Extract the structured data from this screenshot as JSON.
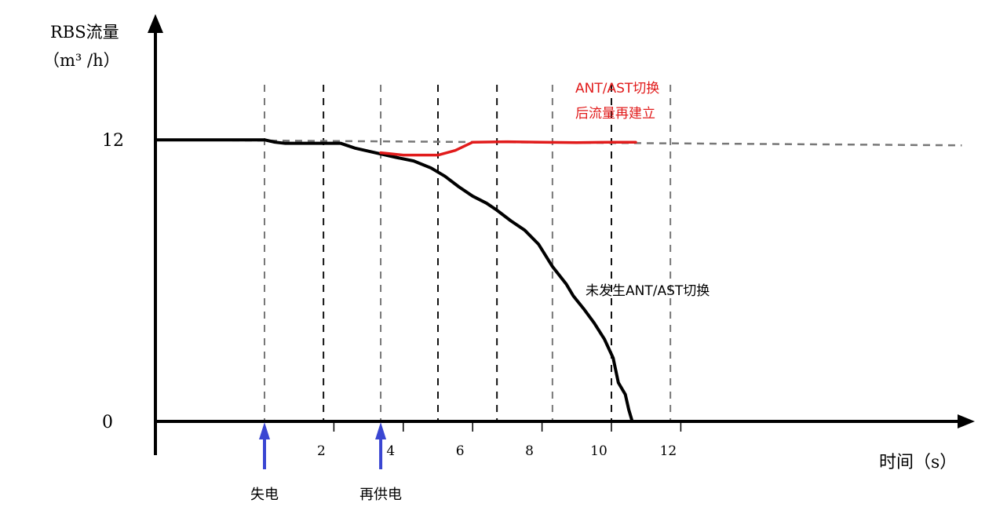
{
  "chart_data": {
    "type": "line",
    "ylabel_line1": "RBS流量",
    "ylabel_line2": "（m³ /h）",
    "xlabel": "时间（s）",
    "y_ticks": [
      {
        "value": 12,
        "label": "12"
      },
      {
        "value": 0,
        "label": "0"
      }
    ],
    "x_ticks": [
      {
        "value": 2,
        "label": "2"
      },
      {
        "value": 4,
        "label": "4"
      },
      {
        "value": 6,
        "label": "6"
      },
      {
        "value": 8,
        "label": "8"
      },
      {
        "value": 10,
        "label": "10"
      },
      {
        "value": 12,
        "label": "12"
      }
    ],
    "xlim": [
      -3.2,
      21
    ],
    "ylim": [
      0,
      12
    ],
    "vertical_dashed_x": [
      0,
      1.7,
      3.35,
      5,
      6.7,
      8.3,
      10,
      11.7
    ],
    "series": [
      {
        "name": "未发生ANT/AST切换",
        "color": "#000000",
        "points": [
          [
            -3.1,
            12
          ],
          [
            0,
            12
          ],
          [
            0.3,
            11.9
          ],
          [
            0.6,
            11.85
          ],
          [
            1.0,
            11.85
          ],
          [
            1.7,
            11.85
          ],
          [
            2.2,
            11.85
          ],
          [
            2.6,
            11.65
          ],
          [
            3.2,
            11.45
          ],
          [
            3.8,
            11.25
          ],
          [
            4.3,
            11.1
          ],
          [
            4.8,
            10.8
          ],
          [
            5.2,
            10.45
          ],
          [
            5.6,
            10.0
          ],
          [
            6.0,
            9.6
          ],
          [
            6.4,
            9.3
          ],
          [
            6.7,
            9.0
          ],
          [
            7.1,
            8.55
          ],
          [
            7.5,
            8.15
          ],
          [
            7.9,
            7.55
          ],
          [
            8.3,
            6.6
          ],
          [
            8.7,
            5.85
          ],
          [
            8.9,
            5.35
          ],
          [
            9.2,
            4.8
          ],
          [
            9.5,
            4.2
          ],
          [
            9.8,
            3.5
          ],
          [
            10.05,
            2.7
          ],
          [
            10.2,
            1.65
          ],
          [
            10.4,
            1.15
          ],
          [
            10.5,
            0.5
          ],
          [
            10.6,
            0
          ]
        ]
      },
      {
        "name": "ANT/AST切换后流量再建立",
        "label_line1": "ANT/AST切换",
        "label_line2": "后流量再建立",
        "color": "#e11b1b",
        "points": [
          [
            3.35,
            11.45
          ],
          [
            4.0,
            11.35
          ],
          [
            5.0,
            11.35
          ],
          [
            5.5,
            11.55
          ],
          [
            6.0,
            11.9
          ],
          [
            7.0,
            11.92
          ],
          [
            8.0,
            11.9
          ],
          [
            9.0,
            11.88
          ],
          [
            10.0,
            11.9
          ],
          [
            10.7,
            11.9
          ]
        ]
      }
    ],
    "reference_line": {
      "value": 12,
      "x_end": 20.1,
      "style": "dashed"
    },
    "markers": [
      {
        "label": "失电",
        "x": 0
      },
      {
        "label": "再供电",
        "x": 3.35
      }
    ]
  }
}
